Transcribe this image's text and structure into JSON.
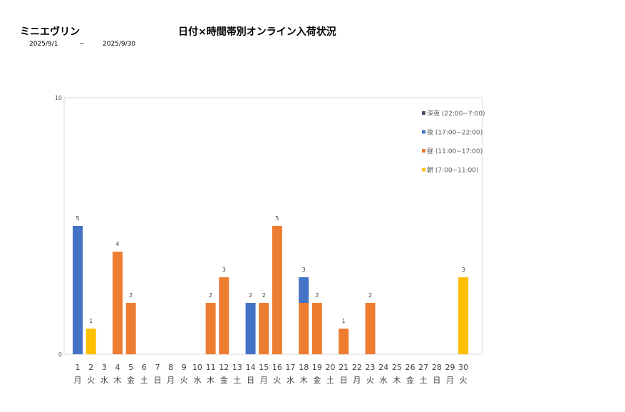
{
  "header": {
    "brand": "ミニエヴリン",
    "title": "日付×時間帯別オンライン入荷状況",
    "date_from": "2025/9/1",
    "tilde": "~",
    "date_to": "2025/9/30"
  },
  "chart_data": {
    "type": "bar",
    "stacked": true,
    "ylim": [
      0,
      10
    ],
    "yticks": [
      "0",
      "10"
    ],
    "legend_position": "top-right",
    "categories": [
      "1",
      "2",
      "3",
      "4",
      "5",
      "6",
      "7",
      "8",
      "9",
      "10",
      "11",
      "12",
      "13",
      "14",
      "15",
      "16",
      "17",
      "18",
      "19",
      "20",
      "21",
      "22",
      "23",
      "24",
      "25",
      "26",
      "27",
      "28",
      "29",
      "30"
    ],
    "weekdays": [
      "月",
      "火",
      "水",
      "木",
      "金",
      "土",
      "日",
      "月",
      "火",
      "水",
      "木",
      "金",
      "土",
      "日",
      "月",
      "火",
      "水",
      "木",
      "金",
      "土",
      "日",
      "月",
      "火",
      "水",
      "木",
      "金",
      "土",
      "日",
      "月",
      "火"
    ],
    "series": [
      {
        "name": "朝 (7:00~11:00)",
        "color": "#FFC000",
        "values": [
          0,
          1,
          0,
          0,
          0,
          0,
          0,
          0,
          0,
          0,
          0,
          0,
          0,
          0,
          0,
          0,
          0,
          0,
          0,
          0,
          0,
          0,
          0,
          0,
          0,
          0,
          0,
          0,
          0,
          3
        ]
      },
      {
        "name": "昼 (11:00~17:00)",
        "color": "#ED7D31",
        "values": [
          0,
          0,
          0,
          4,
          2,
          0,
          0,
          0,
          0,
          0,
          2,
          3,
          0,
          0,
          2,
          5,
          0,
          2,
          2,
          0,
          1,
          0,
          2,
          0,
          0,
          0,
          0,
          0,
          0,
          0
        ]
      },
      {
        "name": "夜 (17:00~22:00)",
        "color": "#4472C4",
        "values": [
          5,
          0,
          0,
          0,
          0,
          0,
          0,
          0,
          0,
          0,
          0,
          0,
          0,
          2,
          0,
          0,
          0,
          1,
          0,
          0,
          0,
          0,
          0,
          0,
          0,
          0,
          0,
          0,
          0,
          0
        ]
      },
      {
        "name": "深夜 (22:00~7:00)",
        "color": "#44546A",
        "values": [
          0,
          0,
          0,
          0,
          0,
          0,
          0,
          0,
          0,
          0,
          0,
          0,
          0,
          0,
          0,
          0,
          0,
          0,
          0,
          0,
          0,
          0,
          0,
          0,
          0,
          0,
          0,
          0,
          0,
          0
        ]
      }
    ],
    "totals": [
      5,
      1,
      0,
      4,
      2,
      0,
      0,
      0,
      0,
      0,
      2,
      3,
      0,
      2,
      2,
      5,
      0,
      3,
      2,
      0,
      1,
      0,
      2,
      0,
      0,
      0,
      0,
      0,
      0,
      3
    ]
  }
}
